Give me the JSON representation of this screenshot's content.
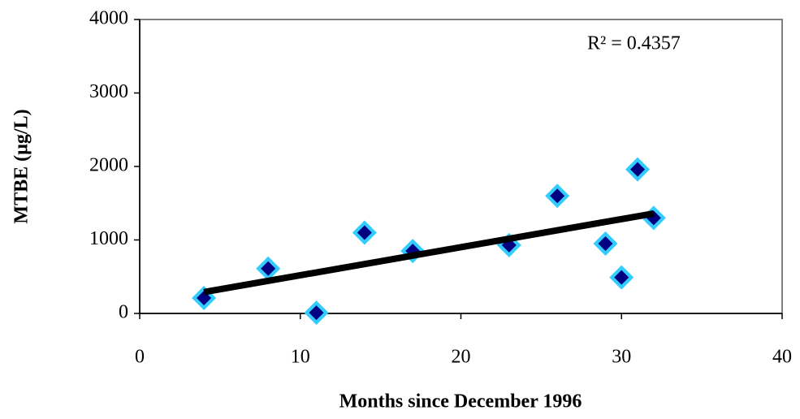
{
  "chart_data": {
    "type": "scatter",
    "x_label": "Months since December 1996",
    "y_label": "MTBE (µg/L)",
    "x": [
      4,
      8,
      11,
      14,
      17,
      23,
      26,
      29,
      30,
      31,
      32
    ],
    "values": [
      210,
      610,
      10,
      1100,
      850,
      930,
      1600,
      950,
      490,
      1960,
      1300
    ],
    "color": "#000080",
    "edge_color": "#33ccff",
    "trendline": {
      "x": [
        4,
        32
      ],
      "y": [
        290,
        1360
      ],
      "color": "#000000",
      "label": "R² =  0.4357"
    },
    "xlim": [
      0,
      40
    ],
    "xticks": [
      0,
      10,
      20,
      30,
      40
    ],
    "ylim": [
      0,
      4000
    ],
    "yticks": [
      0,
      1000,
      2000,
      3000,
      4000
    ],
    "grid": false
  }
}
